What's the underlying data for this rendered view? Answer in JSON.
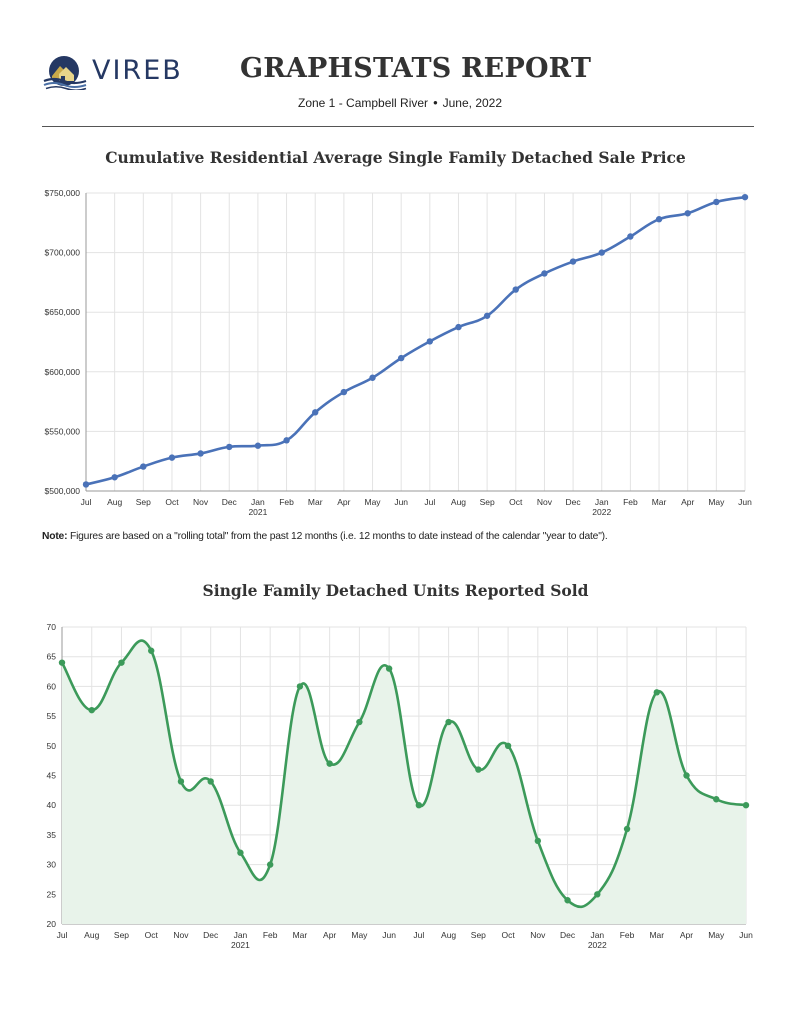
{
  "header": {
    "logo_text": "VIREB",
    "report_title": "GRAPHSTATS REPORT",
    "zone": "Zone 1 - Campbell River",
    "separator": "•",
    "period": "June, 2022"
  },
  "note": {
    "label": "Note:",
    "text": " Figures are based on a \"rolling total\" from the past 12 months (i.e. 12 months to date instead of the calendar \"year to date\")."
  },
  "colors": {
    "line1": "#4a72b8",
    "line2": "#3c9a5a",
    "fill2": "#e8f3ea"
  },
  "chart_data": [
    {
      "type": "line",
      "title": "Cumulative Residential Average Single Family Detached Sale Price",
      "categories": [
        "Jul",
        "Aug",
        "Sep",
        "Oct",
        "Nov",
        "Dec",
        "Jan",
        "Feb",
        "Mar",
        "Apr",
        "May",
        "Jun",
        "Jul",
        "Aug",
        "Sep",
        "Oct",
        "Nov",
        "Dec",
        "Jan",
        "Feb",
        "Mar",
        "Apr",
        "May",
        "Jun"
      ],
      "year_labels": [
        {
          "index": 6,
          "label": "2021"
        },
        {
          "index": 18,
          "label": "2022"
        }
      ],
      "values": [
        505500,
        511500,
        520500,
        528000,
        531500,
        537000,
        538000,
        542500,
        566000,
        583000,
        595000,
        611500,
        625500,
        637500,
        647000,
        669000,
        682500,
        692500,
        700000,
        713500,
        728000,
        733000,
        742500,
        746500
      ],
      "y_ticks": [
        500000,
        550000,
        600000,
        650000,
        700000,
        750000
      ],
      "y_tick_labels": [
        "$500,000",
        "$550,000",
        "$600,000",
        "$650,000",
        "$700,000",
        "$750,000"
      ],
      "ylim": [
        500000,
        750000
      ],
      "xlabel": "",
      "ylabel": "",
      "legend": "none",
      "grid": true
    },
    {
      "type": "area",
      "title": "Single Family Detached Units Reported Sold",
      "categories": [
        "Jul",
        "Aug",
        "Sep",
        "Oct",
        "Nov",
        "Dec",
        "Jan",
        "Feb",
        "Mar",
        "Apr",
        "May",
        "Jun",
        "Jul",
        "Aug",
        "Sep",
        "Oct",
        "Nov",
        "Dec",
        "Jan",
        "Feb",
        "Mar",
        "Apr",
        "May",
        "Jun"
      ],
      "year_labels": [
        {
          "index": 6,
          "label": "2021"
        },
        {
          "index": 18,
          "label": "2022"
        }
      ],
      "values": [
        64,
        56,
        64,
        66,
        44,
        44,
        32,
        30,
        60,
        47,
        54,
        63,
        40,
        54,
        46,
        50,
        34,
        24,
        25,
        36,
        59,
        45,
        41,
        40
      ],
      "y_ticks": [
        20,
        25,
        30,
        35,
        40,
        45,
        50,
        55,
        60,
        65,
        70
      ],
      "y_tick_labels": [
        "20",
        "25",
        "30",
        "35",
        "40",
        "45",
        "50",
        "55",
        "60",
        "65",
        "70"
      ],
      "ylim": [
        20,
        70
      ],
      "xlabel": "",
      "ylabel": "",
      "legend": "none",
      "grid": true
    }
  ]
}
